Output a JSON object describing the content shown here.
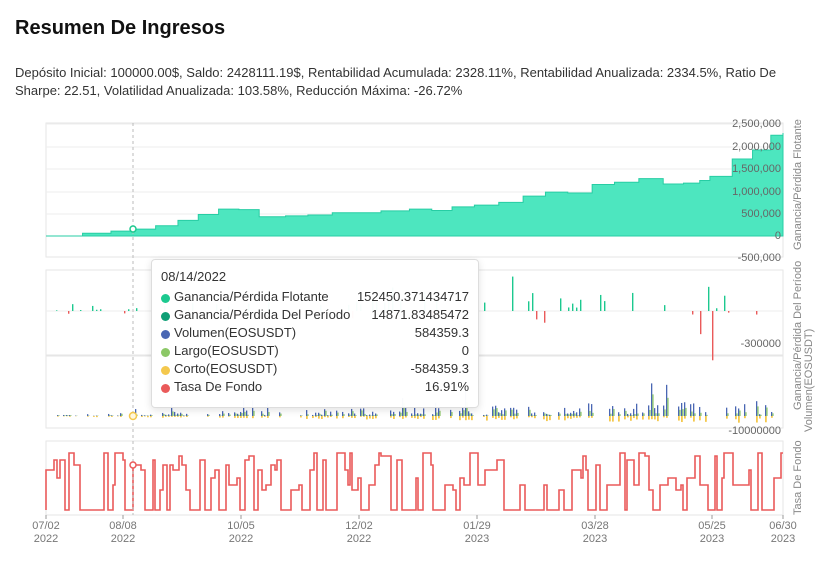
{
  "header": {
    "title": "Resumen De Ingresos",
    "summary": "Depósito Inicial: 100000.00$, Saldo: 2428111.19$, Rentabilidad Acumulada: 2328.11%, Rentabilidad Anualizada: 2334.5%, Ratio De Sharpe: 22.51, Volatilidad Anualizada: 103.58%, Reducción Máxima: -26.72%"
  },
  "colors": {
    "floating": "#1cc98f",
    "period": "#0f9f76",
    "volume": "#4a67b3",
    "long": "#8cc867",
    "short": "#f4c84d",
    "funding": "#ea5a5a",
    "area_fill": "#4de6bf"
  },
  "axes": {
    "x_ticks": [
      {
        "label": "07/02",
        "year": "2022"
      },
      {
        "label": "08/08",
        "year": "2022"
      },
      {
        "label": "10/05",
        "year": "2022"
      },
      {
        "label": "12/02",
        "year": "2022"
      },
      {
        "label": "01/29",
        "year": "2023"
      },
      {
        "label": "03/28",
        "year": "2023"
      },
      {
        "label": "05/25",
        "year": "2023"
      },
      {
        "label": "06/30",
        "year": "2023"
      }
    ],
    "panel1_ticks": [
      "2,500,000",
      "2,000,000",
      "1,500,000",
      "1,000,000",
      "500,000",
      "0",
      "-500,000"
    ],
    "panel2_tick": "-300000",
    "panel3_tick": "-10000000",
    "panel1_ylabel": "Ganancia/Pérdida Flotante",
    "panel2_ylabel": "Ganancia/Pérdida Del Período",
    "panel3_ylabel": "Volumen(EOSUSDT)",
    "panel4_ylabel": "Tasa De Fondo"
  },
  "tooltip": {
    "date": "08/14/2022",
    "rows": [
      {
        "name": "Ganancia/Pérdida Flotante",
        "value": "152450.371434717",
        "color": "#1cc98f"
      },
      {
        "name": "Ganancia/Pérdida Del Período",
        "value": "14871.83485472",
        "color": "#0f9f76"
      },
      {
        "name": "Volumen(EOSUSDT)",
        "value": "584359.3",
        "color": "#4a67b3"
      },
      {
        "name": "Largo(EOSUSDT)",
        "value": "0",
        "color": "#8cc867"
      },
      {
        "name": "Corto(EOSUSDT)",
        "value": "-584359.3",
        "color": "#f4c84d"
      },
      {
        "name": "Tasa De Fondo",
        "value": "16.91%",
        "color": "#ea5a5a"
      }
    ]
  },
  "chart_data": {
    "type": "area",
    "x_range": [
      "2022-07-02",
      "2023-06-30"
    ],
    "ylim": [
      -500000,
      2500000
    ],
    "series": [
      {
        "name": "Ganancia/Pérdida Flotante",
        "x": [
          "2022-07-02",
          "2022-07-20",
          "2022-08-03",
          "2022-08-14",
          "2022-08-25",
          "2022-09-05",
          "2022-09-15",
          "2022-09-25",
          "2022-10-05",
          "2022-10-15",
          "2022-10-28",
          "2022-11-08",
          "2022-11-20",
          "2022-12-02",
          "2022-12-14",
          "2022-12-28",
          "2023-01-08",
          "2023-01-18",
          "2023-01-29",
          "2023-02-10",
          "2023-02-22",
          "2023-03-05",
          "2023-03-16",
          "2023-03-28",
          "2023-04-08",
          "2023-04-20",
          "2023-05-02",
          "2023-05-12",
          "2023-05-20",
          "2023-05-25",
          "2023-06-05",
          "2023-06-15",
          "2023-06-24",
          "2023-06-30"
        ],
        "values": [
          0,
          60000,
          110000,
          152450,
          230000,
          350000,
          480000,
          600000,
          590000,
          430000,
          450000,
          470000,
          520000,
          520000,
          560000,
          600000,
          570000,
          650000,
          690000,
          750000,
          890000,
          980000,
          960000,
          1150000,
          1200000,
          1280000,
          1160000,
          1180000,
          1240000,
          1330000,
          1720000,
          1920000,
          2250000,
          2300000
        ]
      }
    ]
  }
}
